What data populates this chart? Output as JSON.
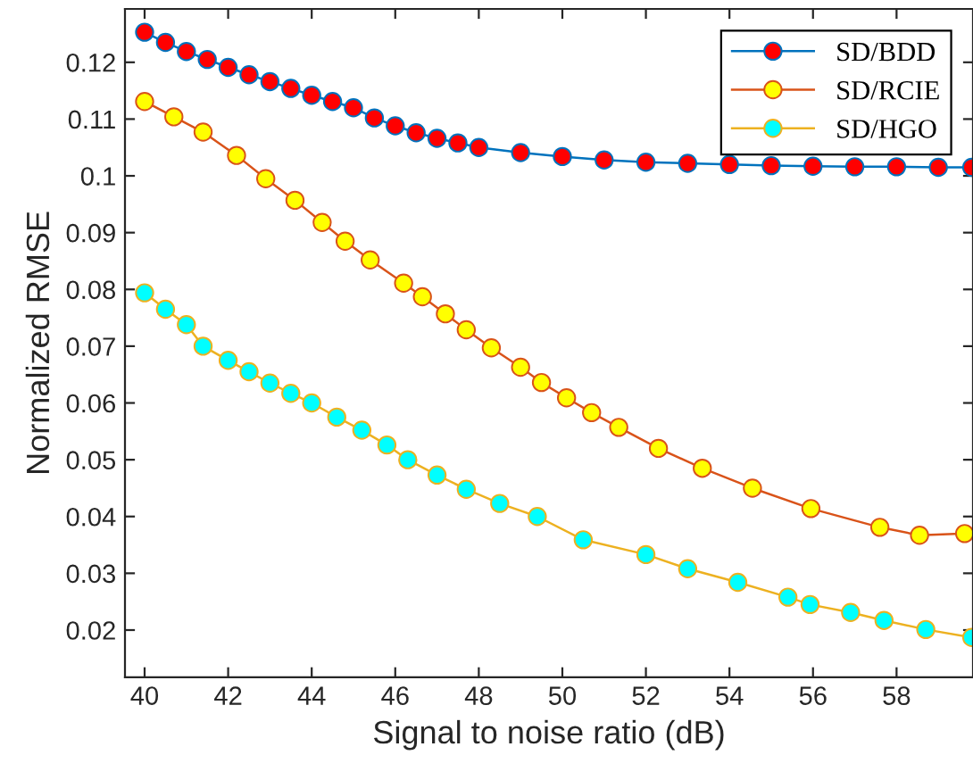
{
  "chart_data": {
    "type": "line",
    "xlabel": "Signal to noise ratio (dB)",
    "ylabel": "Normalized RMSE",
    "xlim": [
      39.53,
      59.83
    ],
    "ylim": [
      0.0117,
      0.1294
    ],
    "xticks": [
      40,
      42,
      44,
      46,
      48,
      50,
      52,
      54,
      56,
      58
    ],
    "yticks": [
      0.02,
      0.03,
      0.04,
      0.05,
      0.06,
      0.07,
      0.08,
      0.09,
      0.1,
      0.11,
      0.12
    ],
    "grid": false,
    "legend": "top right",
    "marker": "circle",
    "line_style": "solid",
    "series": [
      {
        "name": "SD/BDD",
        "color": "#ff0000",
        "x": [
          40,
          40.5,
          41,
          41.5,
          42,
          42.5,
          43,
          43.5,
          44,
          44.5,
          45,
          45.5,
          46,
          46.5,
          47,
          47.5,
          48,
          49,
          50,
          51,
          52,
          53,
          54,
          55,
          56,
          57,
          58,
          59,
          59.8
        ],
        "values": [
          0.1253,
          0.1235,
          0.1219,
          0.1205,
          0.1191,
          0.1178,
          0.1166,
          0.1154,
          0.1142,
          0.1131,
          0.112,
          0.1102,
          0.1088,
          0.1076,
          0.1066,
          0.1058,
          0.105,
          0.1041,
          0.1034,
          0.1028,
          0.1024,
          0.1022,
          0.102,
          0.1018,
          0.1017,
          0.1016,
          0.1016,
          0.1015,
          0.1015
        ]
      },
      {
        "name": "SD/RCIE",
        "color": "#ffff00",
        "x": [
          40,
          40.7,
          41.4,
          42.2,
          42.9,
          43.6,
          44.25,
          44.8,
          45.4,
          46.2,
          46.65,
          47.2,
          47.7,
          48.3,
          49.0,
          49.5,
          50.1,
          50.7,
          51.35,
          52.3,
          53.35,
          54.55,
          55.95,
          57.6,
          58.55,
          59.63
        ],
        "values": [
          0.1131,
          0.1104,
          0.1077,
          0.1036,
          0.0995,
          0.0957,
          0.0918,
          0.0885,
          0.0852,
          0.0811,
          0.0787,
          0.0757,
          0.0729,
          0.0697,
          0.0663,
          0.0636,
          0.0609,
          0.0583,
          0.0557,
          0.052,
          0.0485,
          0.045,
          0.0414,
          0.0381,
          0.0367,
          0.037
        ]
      },
      {
        "name": "SD/HGO",
        "color": "#00ffff",
        "x": [
          40,
          40.5,
          41,
          41.4,
          42,
          42.5,
          43,
          43.5,
          44,
          44.6,
          45.2,
          45.8,
          46.3,
          47,
          47.7,
          48.5,
          49.4,
          50.5,
          52,
          53,
          54.2,
          55.4,
          55.93,
          56.9,
          57.7,
          58.7,
          59.8
        ],
        "values": [
          0.0794,
          0.0765,
          0.0738,
          0.07,
          0.0675,
          0.0655,
          0.0635,
          0.0617,
          0.06,
          0.0575,
          0.0552,
          0.0526,
          0.05,
          0.0473,
          0.0448,
          0.0423,
          0.04,
          0.0359,
          0.0333,
          0.0308,
          0.0284,
          0.0258,
          0.0245,
          0.0231,
          0.0217,
          0.0201,
          0.0187
        ]
      }
    ]
  }
}
